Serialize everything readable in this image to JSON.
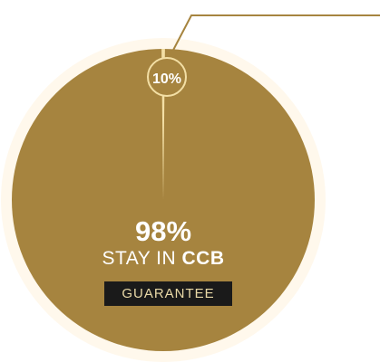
{
  "chart_data": {
    "type": "pie",
    "slices": [
      {
        "label": "STAY IN CCB",
        "value": 98,
        "display": "98%",
        "color": "#a6843f"
      },
      {
        "label": "",
        "value": 2,
        "display": "",
        "color": "#f3dfa5"
      }
    ],
    "callout_value": "10%",
    "main_value": "98%",
    "main_label_prefix": "STAY IN",
    "main_label_strong": "CCB",
    "badge": "GUARANTEE"
  },
  "colors": {
    "main": "#a6843f",
    "highlight": "#f3dfa5",
    "halo": "#fff8ec",
    "badge_bg": "#1a1a1a",
    "badge_text": "#e9d9a7"
  }
}
